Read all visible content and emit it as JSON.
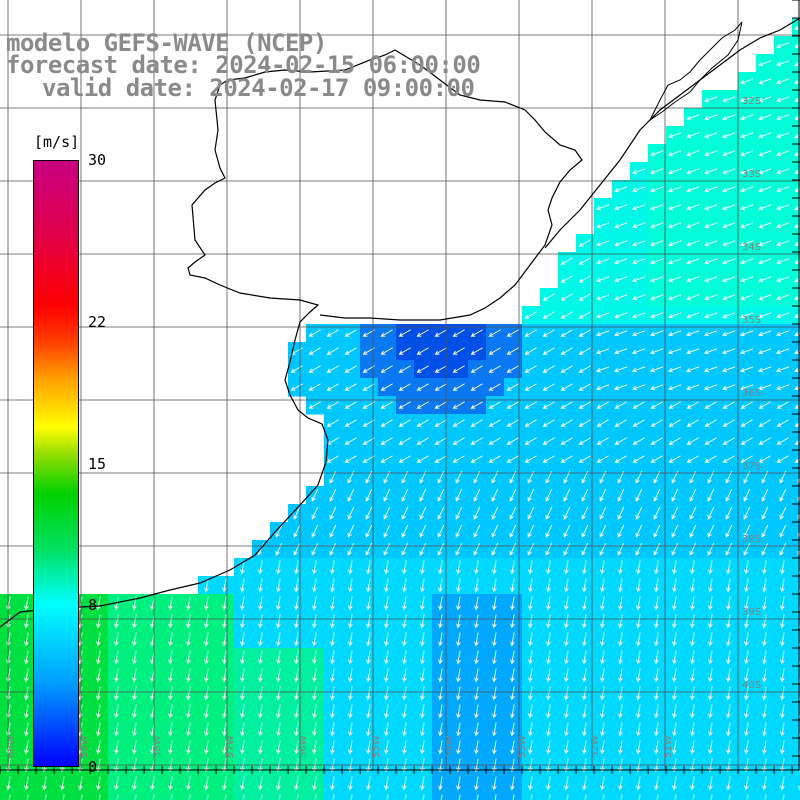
{
  "title": {
    "line1": "modelo GEFS-WAVE (NCEP)",
    "line2": "forecast date: 2024-02-15 06:00:00",
    "line3": "valid date: 2024-02-17 09:00:00"
  },
  "legend": {
    "unit": "[m/s]",
    "ticks": [
      {
        "label": "30",
        "value": 30
      },
      {
        "label": "22",
        "value": 22
      },
      {
        "label": "15",
        "value": 15
      },
      {
        "label": "8",
        "value": 8
      },
      {
        "label": "0",
        "value": 0
      }
    ],
    "min": 0,
    "max": 30
  },
  "map": {
    "lat_labels": [
      "32S",
      "33S",
      "34S",
      "35S",
      "36S",
      "37S",
      "38S",
      "39S",
      "40S"
    ],
    "lon_labels": [
      "60W",
      "59W",
      "58W",
      "57W",
      "56W",
      "55W",
      "54W",
      "53W",
      "52W",
      "51W"
    ],
    "field": "wind speed",
    "colors": {
      "land": "#ffffff",
      "ocean_low": "#0050e8",
      "ocean_mid": "#00c8ff",
      "ocean_8ms": "#00ffff",
      "ocean_high": "#00e040",
      "arrow": "#ffffff",
      "coast": "#000000",
      "grid": "#505050"
    }
  }
}
